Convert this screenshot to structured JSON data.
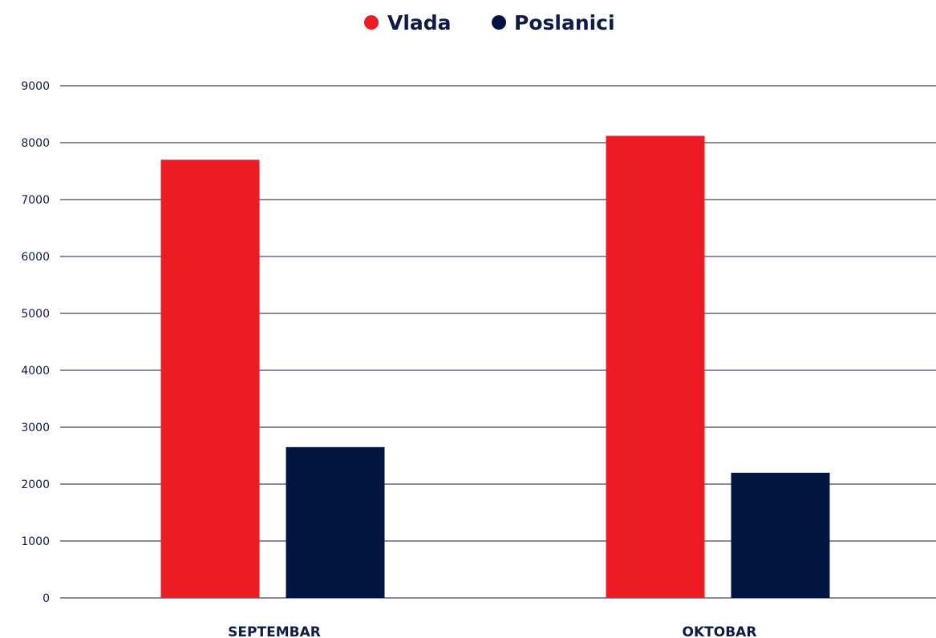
{
  "chart_data": {
    "type": "bar",
    "title": "",
    "xlabel": "",
    "ylabel": "",
    "categories": [
      "SEPTEMBAR",
      "OKTOBAR"
    ],
    "series": [
      {
        "name": "Vlada",
        "color": "#ed1c24",
        "values": [
          7700,
          8120
        ]
      },
      {
        "name": "Poslanici",
        "color": "#001540",
        "values": [
          2650,
          2200
        ]
      }
    ],
    "ylim": [
      0,
      9000
    ],
    "yticks": [
      "0",
      "1000",
      "2000",
      "3000",
      "4000",
      "5000",
      "6000",
      "7000",
      "8000",
      "9000"
    ],
    "grid": true,
    "legend_position": "top-center"
  }
}
